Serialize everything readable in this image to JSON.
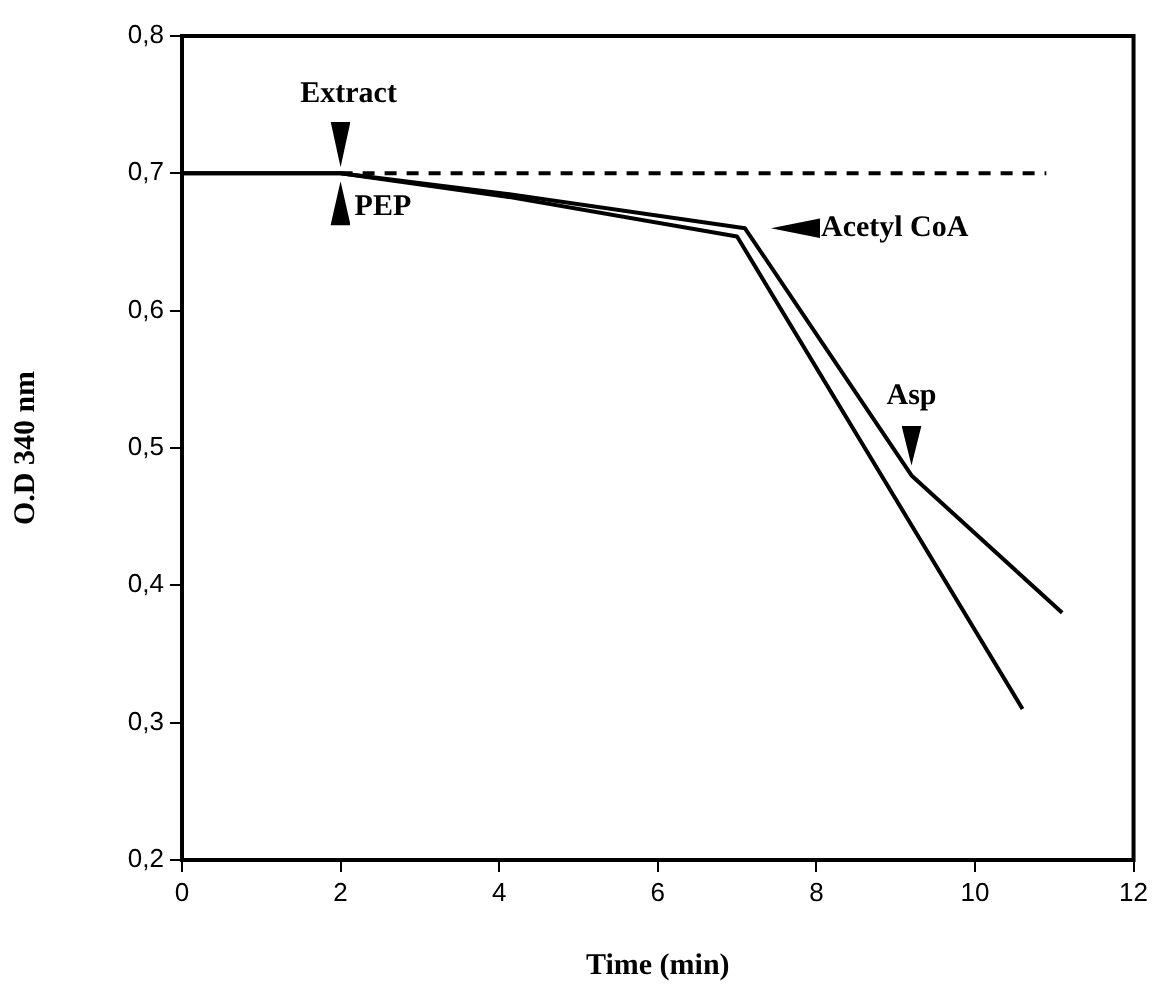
{
  "chart_data": {
    "type": "line",
    "xlabel": "Time (min)",
    "ylabel": "O.D 340 nm",
    "xlim": [
      0,
      12
    ],
    "xticks": [
      0,
      2,
      4,
      6,
      8,
      10,
      12
    ],
    "ylim": [
      0.2,
      0.8
    ],
    "yticks": [
      {
        "value": 0.2,
        "label": "0,2"
      },
      {
        "value": 0.3,
        "label": "0,3"
      },
      {
        "value": 0.4,
        "label": "0,4"
      },
      {
        "value": 0.5,
        "label": "0,5"
      },
      {
        "value": 0.6,
        "label": "0,6"
      },
      {
        "value": 0.7,
        "label": "0,7"
      },
      {
        "value": 0.8,
        "label": "0,8"
      }
    ],
    "grid": false,
    "legend": false,
    "marker": "none",
    "series": [
      {
        "color": "#000000",
        "line_style": "solid",
        "x": [
          0,
          2,
          4.1,
          7.1,
          9.2,
          11.1
        ],
        "values": [
          0.7,
          0.7,
          0.685,
          0.66,
          0.48,
          0.38
        ]
      },
      {
        "color": "#000000",
        "line_style": "solid",
        "x": [
          0,
          2,
          4.1,
          7.0,
          10.6
        ],
        "values": [
          0.7,
          0.7,
          0.683,
          0.654,
          0.31
        ]
      },
      {
        "color": "#000000",
        "line_style": "dashed",
        "x": [
          2,
          10.9
        ],
        "values": [
          0.7,
          0.7
        ]
      }
    ],
    "annotations": [
      {
        "text": "Extract",
        "x": 2,
        "y": 0.7
      },
      {
        "text": "PEP",
        "x": 2,
        "y": 0.7
      },
      {
        "text": "Acetyl CoA",
        "x": 7.1,
        "y": 0.66
      },
      {
        "text": "Asp",
        "x": 9.2,
        "y": 0.48
      }
    ]
  }
}
